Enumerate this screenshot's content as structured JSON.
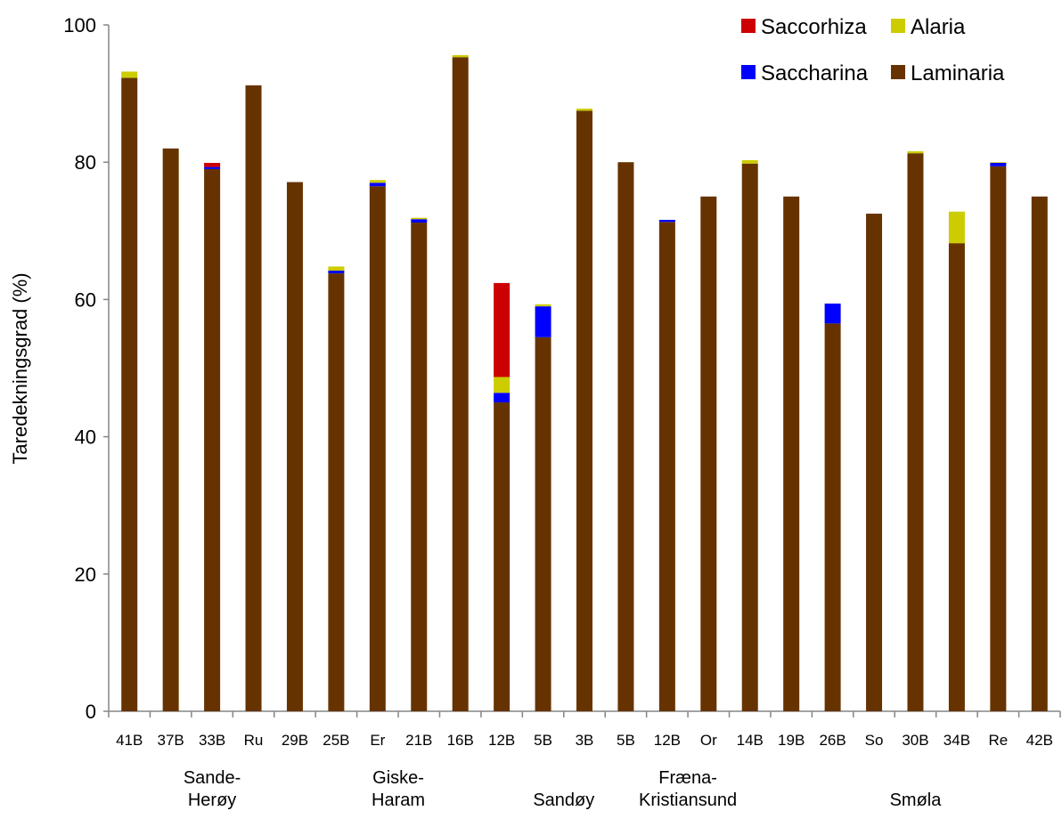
{
  "chart_data": {
    "type": "bar",
    "stacked": true,
    "ylabel": "Taredekningsgrad  (%)",
    "xlabel": "",
    "ylim": [
      0,
      100
    ],
    "yticks": [
      0,
      20,
      40,
      60,
      80,
      100
    ],
    "grid": false,
    "legend_position": "top-right",
    "categories": [
      "41B",
      "37B",
      "33B",
      "Ru",
      "29B",
      "25B",
      "Er",
      "21B",
      "16B",
      "12B",
      "5B",
      "3B",
      "5B",
      "12B",
      "Or",
      "14B",
      "19B",
      "26B",
      "So",
      "30B",
      "34B",
      "Re",
      "42B"
    ],
    "series": [
      {
        "name": "Laminaria",
        "color": "#663300",
        "values": [
          92.3,
          82.0,
          79.0,
          91.2,
          77.1,
          63.8,
          76.5,
          71.2,
          95.3,
          45.0,
          54.5,
          87.5,
          80.0,
          71.3,
          75.0,
          79.8,
          75.0,
          56.5,
          72.5,
          81.3,
          68.2,
          79.4,
          75.0
        ]
      },
      {
        "name": "Saccharina",
        "color": "#0000ff",
        "values": [
          0,
          0,
          0.3,
          0,
          0,
          0.4,
          0.5,
          0.5,
          0,
          1.4,
          4.5,
          0,
          0,
          0.3,
          0,
          0,
          0,
          2.9,
          0,
          0,
          0,
          0.5,
          0
        ]
      },
      {
        "name": "Alaria",
        "color": "#cccc00",
        "values": [
          0.9,
          0,
          0,
          0,
          0,
          0.6,
          0.4,
          0.2,
          0.3,
          2.3,
          0.3,
          0.3,
          0,
          0,
          0,
          0.5,
          0,
          0,
          0,
          0.3,
          4.6,
          0.1,
          0
        ]
      },
      {
        "name": "Saccorhiza",
        "color": "#cc0000",
        "values": [
          0,
          0,
          0.6,
          0,
          0,
          0,
          0,
          0,
          0,
          13.7,
          0,
          0,
          0,
          0,
          0,
          0,
          0,
          0,
          0,
          0,
          0,
          0,
          0
        ]
      }
    ],
    "groups": [
      {
        "lines": [
          "Sande-",
          "Herøy"
        ],
        "from": 0,
        "to": 4
      },
      {
        "lines": [
          "Giske-",
          "Haram"
        ],
        "from": 5,
        "to": 8
      },
      {
        "lines": [
          "Sandøy"
        ],
        "from": 9,
        "to": 12
      },
      {
        "lines": [
          "Fræna-",
          "Kristiansund"
        ],
        "from": 12,
        "to": 15
      },
      {
        "lines": [
          "Smøla"
        ],
        "from": 16,
        "to": 22
      }
    ],
    "legend": [
      {
        "name": "Saccorhiza",
        "color": "#cc0000"
      },
      {
        "name": "Alaria",
        "color": "#cccc00"
      },
      {
        "name": "Saccharina",
        "color": "#0000ff"
      },
      {
        "name": "Laminaria",
        "color": "#663300"
      }
    ]
  }
}
